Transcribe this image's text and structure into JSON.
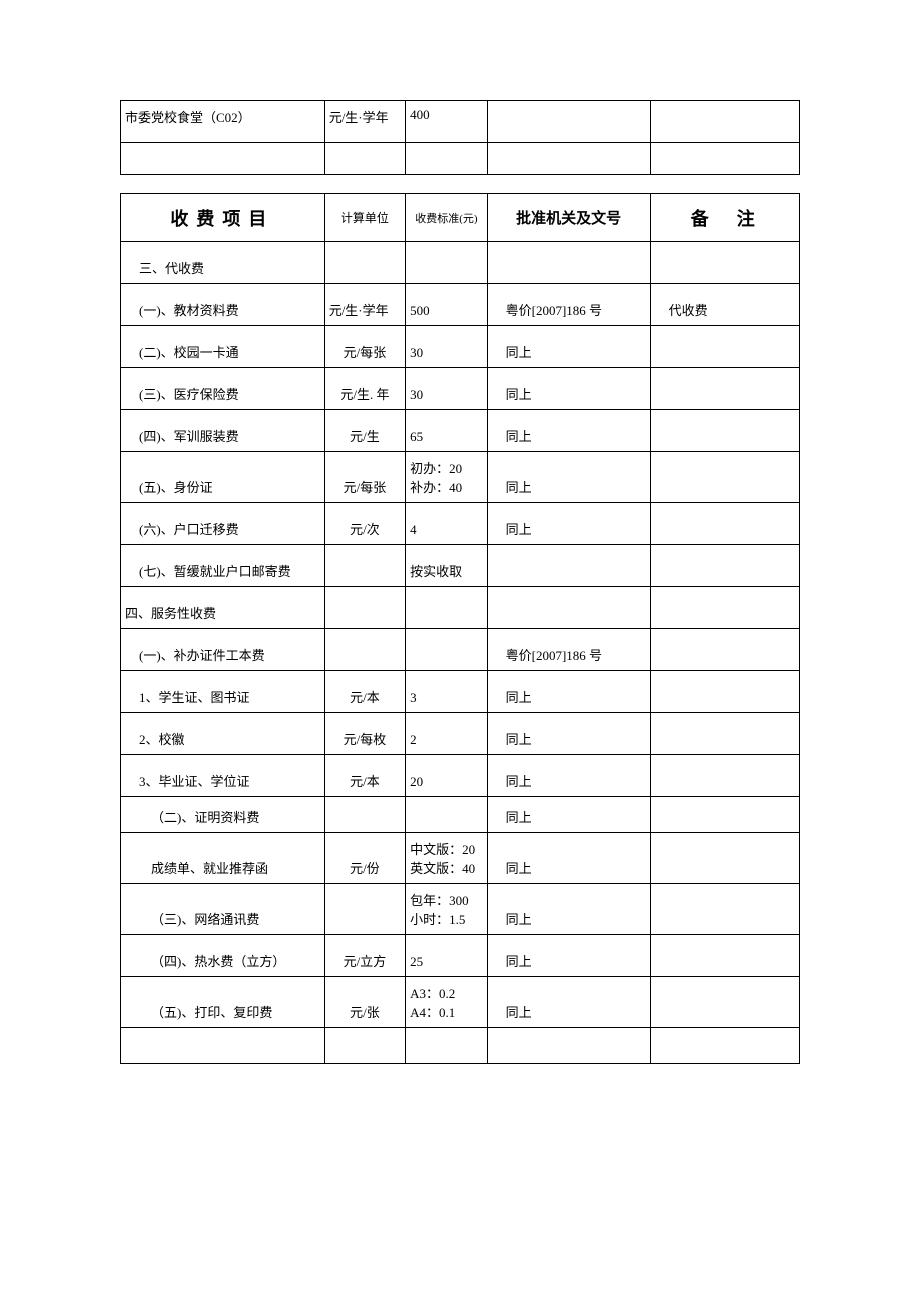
{
  "table1": {
    "rows": [
      {
        "c1": "市委党校食堂（C02）",
        "c2": "元/生·学年",
        "c3": "400",
        "c4": "",
        "c5": ""
      }
    ]
  },
  "table2": {
    "header": {
      "c1": "收费项目",
      "c2": "计算单位",
      "c3": "收费标准(元)",
      "c4": "批准机关及文号",
      "c5": "备注"
    },
    "rows": [
      {
        "c1": "三、代收费",
        "c2": "",
        "c3": "",
        "c4": "",
        "c5": "",
        "indent": "indent1"
      },
      {
        "c1": "(一)、教材资料费",
        "c2": "元/生·学年",
        "c3": "500",
        "c4": "粤价[2007]186 号",
        "c5": "代收费",
        "indent": "indent1",
        "c4indent": true,
        "c5indent": true
      },
      {
        "c1": "(二)、校园一卡通",
        "c2": "元/每张",
        "c3": "30",
        "c4": "同上",
        "c5": "",
        "indent": "indent1",
        "c2center": true,
        "c4indent": true
      },
      {
        "c1": "(三)、医疗保险费",
        "c2": "元/生. 年",
        "c3": "30",
        "c4": "同上",
        "c5": "",
        "indent": "indent1",
        "c2center": true,
        "c4indent": true
      },
      {
        "c1": "(四)、军训服装费",
        "c2": "元/生",
        "c3": "65",
        "c4": "同上",
        "c5": "",
        "indent": "indent1",
        "c2center": true,
        "c4indent": true
      },
      {
        "c1": "(五)、身份证",
        "c2": "元/每张",
        "c3": "初办：20\n补办：40",
        "c4": "同上",
        "c5": "",
        "indent": "indent1",
        "c2center": true,
        "c4indent": true
      },
      {
        "c1": "(六)、户口迁移费",
        "c2": "元/次",
        "c3": "4",
        "c4": "同上",
        "c5": "",
        "indent": "indent1",
        "c2center": true,
        "c4indent": true
      },
      {
        "c1": "(七)、暂缓就业户口邮寄费",
        "c2": "",
        "c3": "按实收取",
        "c4": "",
        "c5": "",
        "indent": "indent1"
      },
      {
        "c1": "四、服务性收费",
        "c2": "",
        "c3": "",
        "c4": "",
        "c5": "",
        "indent": "noindent"
      },
      {
        "c1": "(一)、补办证件工本费",
        "c2": "",
        "c3": "",
        "c4": "粤价[2007]186 号",
        "c5": "",
        "indent": "indent1",
        "c4indent": true
      },
      {
        "c1": "1、学生证、图书证",
        "c2": "元/本",
        "c3": "3",
        "c4": "同上",
        "c5": "",
        "indent": "indent1",
        "c2center": true,
        "c4indent": true
      },
      {
        "c1": "2、校徽",
        "c2": "元/每枚",
        "c3": "2",
        "c4": "同上",
        "c5": "",
        "indent": "indent1",
        "c2center": true,
        "c4indent": true
      },
      {
        "c1": "3、毕业证、学位证",
        "c2": "元/本",
        "c3": "20",
        "c4": "同上",
        "c5": "",
        "indent": "indent1",
        "c2center": true,
        "c4indent": true
      },
      {
        "c1": "（二)、证明资料费",
        "c2": "",
        "c3": "",
        "c4": "同上",
        "c5": "",
        "indent": "indent2",
        "c4indent": true,
        "short": true
      },
      {
        "c1": "成绩单、就业推荐函",
        "c2": "元/份",
        "c3": "中文版：20\n英文版：40",
        "c4": "同上",
        "c5": "",
        "indent": "indent2",
        "c2center": true,
        "c4indent": true
      },
      {
        "c1": "（三)、网络通讯费",
        "c2": "",
        "c3": "包年：300\n小时：1.5",
        "c4": "同上",
        "c5": "",
        "indent": "indent2",
        "c4indent": true
      },
      {
        "c1": "（四)、热水费（立方）",
        "c2": "元/立方",
        "c3": "25",
        "c4": "同上",
        "c5": "",
        "indent": "indent2",
        "c2center": true,
        "c4indent": true
      },
      {
        "c1": "（五)、打印、复印费",
        "c2": "元/张",
        "c3": "A3：0.2\nA4：0.1",
        "c4": "同上",
        "c5": "",
        "indent": "indent2",
        "c2center": true,
        "c4indent": true
      },
      {
        "c1": "",
        "c2": "",
        "c3": "",
        "c4": "",
        "c5": "",
        "indent": "noindent",
        "short": true
      }
    ]
  }
}
